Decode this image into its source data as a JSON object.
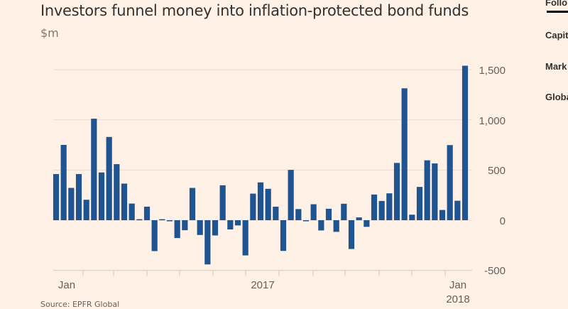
{
  "header": {
    "title": "Investors funnel money into inflation-protected bond funds",
    "unit": "$m"
  },
  "sidebar": {
    "items": [
      "Follo",
      "Capit",
      "Mark",
      "Globa"
    ]
  },
  "source": "Source: EPFR Global",
  "colors": {
    "background": "#fff1e5",
    "bar": "#1f5490",
    "grid": "#e9dccf",
    "text": "#66605c"
  },
  "chart_data": {
    "type": "bar",
    "title": "Investors funnel money into inflation-protected bond funds",
    "ylabel": "$m",
    "ylim": [
      -500,
      1500
    ],
    "yticks": [
      "1,500",
      "1,000",
      "500",
      "0",
      "-500"
    ],
    "ytick_values": [
      1500,
      1000,
      500,
      0,
      -500
    ],
    "xtick_labels": [
      [
        "Jan"
      ],
      [
        "2017"
      ],
      [
        "Jan",
        "2018"
      ]
    ],
    "grid": true,
    "y_axis_side": "right",
    "values": [
      460,
      751,
      322,
      460,
      204,
      1012,
      476,
      830,
      559,
      365,
      166,
      10,
      135,
      -308,
      10,
      -5,
      -178,
      -100,
      322,
      -147,
      -441,
      -152,
      348,
      -92,
      -52,
      -351,
      265,
      377,
      313,
      135,
      -306,
      502,
      111,
      -10,
      159,
      -102,
      114,
      -116,
      164,
      -287,
      28,
      -66,
      256,
      192,
      268,
      571,
      1315,
      55,
      332,
      597,
      566,
      102,
      749,
      194,
      1540
    ]
  }
}
